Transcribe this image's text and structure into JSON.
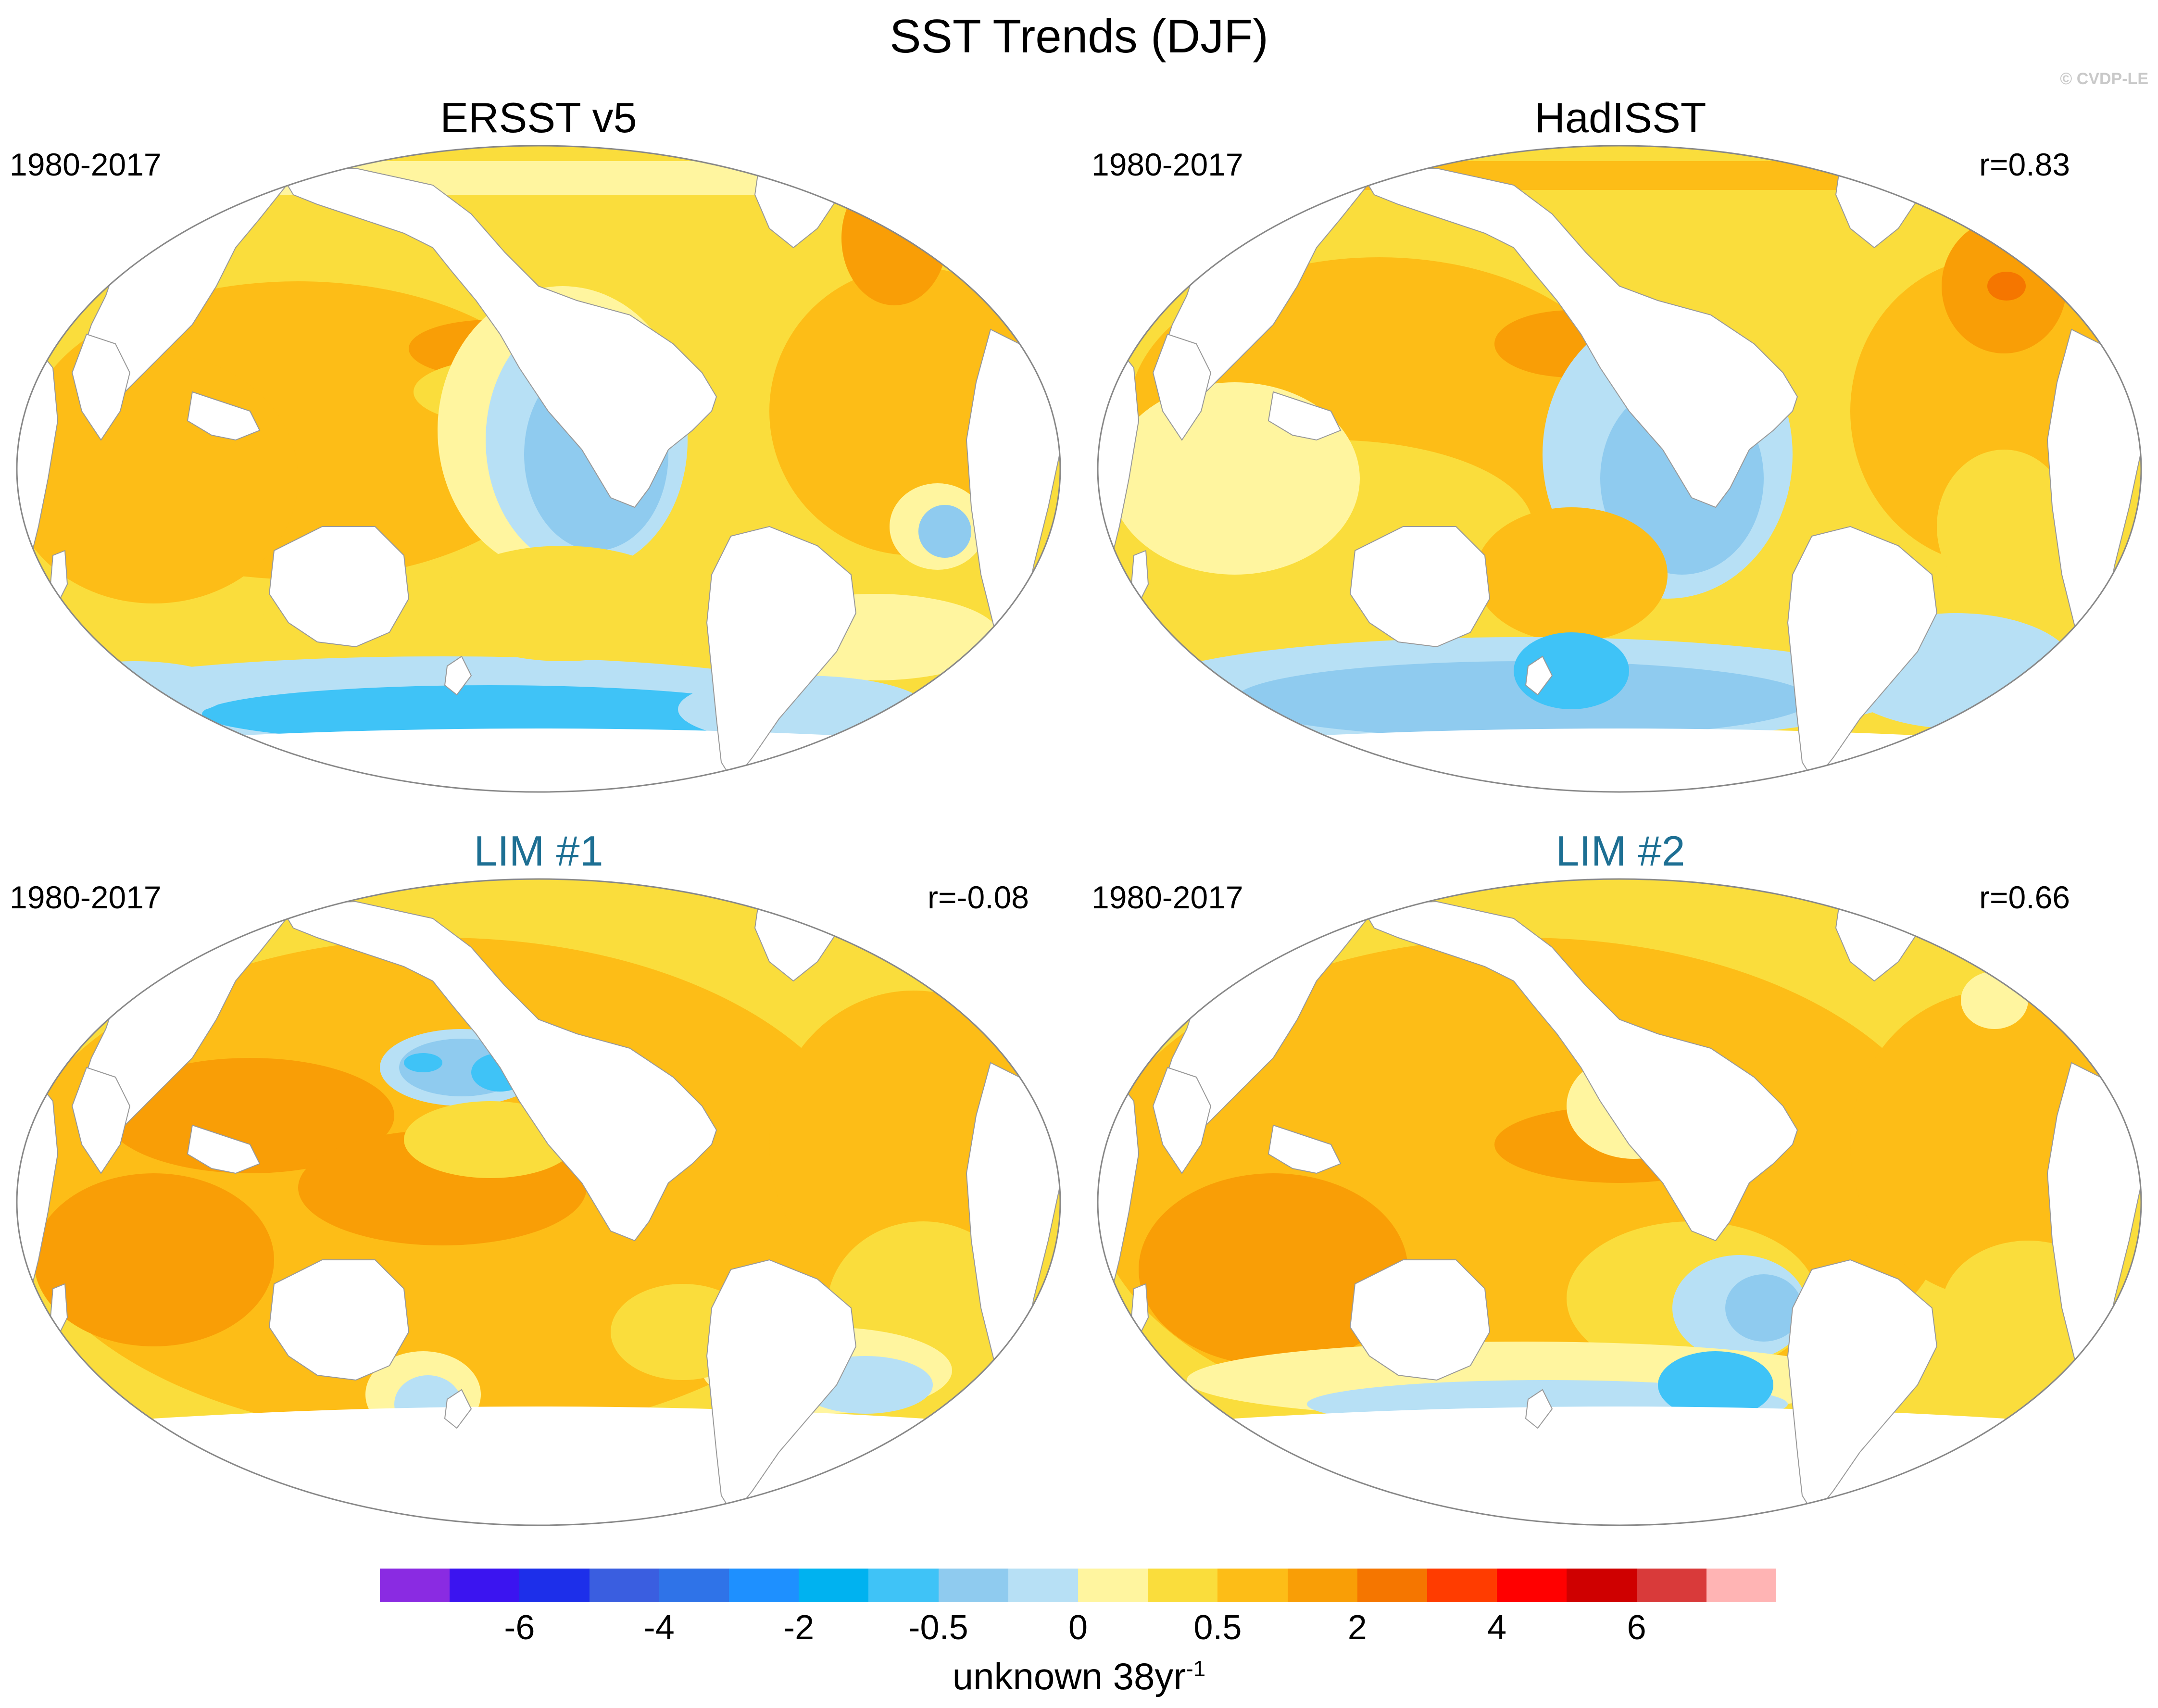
{
  "title": "SST Trends (DJF)",
  "watermark": "© CVDP-LE",
  "panels": [
    {
      "title": "ERSST v5",
      "period": "1980-2017",
      "corr": "",
      "title_color": "#000000"
    },
    {
      "title": "HadISST",
      "period": "1980-2017",
      "corr": "r=0.83",
      "title_color": "#000000"
    },
    {
      "title": "LIM #1",
      "period": "1980-2017",
      "corr": "r=-0.08",
      "title_color": "#1d6f93"
    },
    {
      "title": "LIM #2",
      "period": "1980-2017",
      "corr": "r=0.66",
      "title_color": "#1d6f93"
    }
  ],
  "colorbar": {
    "colors": [
      "#8a2be2",
      "#3b14f0",
      "#1d2fea",
      "#3a5ee0",
      "#2f73e8",
      "#1e90ff",
      "#00b2f0",
      "#3fc3f7",
      "#8fcbef",
      "#b7e0f5",
      "#fff59f",
      "#fadd3c",
      "#fdbd17",
      "#f99e06",
      "#f57600",
      "#ff3c00",
      "#ff0000",
      "#cf0000",
      "#d93a3a",
      "#ffb4b4"
    ],
    "labels": [
      "-6",
      "-4",
      "-2",
      "-0.5",
      "0",
      "0.5",
      "2",
      "4",
      "6"
    ],
    "units_base": "unknown 38yr",
    "units_exp": "-1"
  },
  "legend_regions": [
    "ocean-trend-field",
    "antarctic-sea-ice-mask",
    "continents"
  ]
}
